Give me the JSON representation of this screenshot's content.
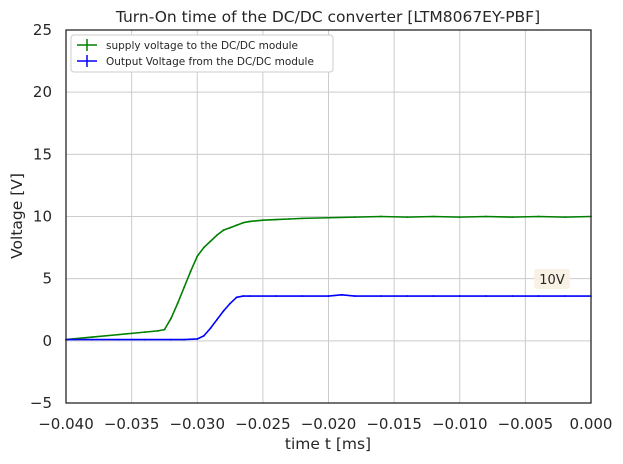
{
  "chart_data": {
    "type": "line",
    "title": "Turn-On time of the DC/DC converter [LTM8067EY-PBF]",
    "xlabel": "time t [ms]",
    "ylabel": "Voltage [V]",
    "xlim": [
      -0.04,
      0.0
    ],
    "ylim": [
      -5,
      25
    ],
    "x_ticks": [
      -0.04,
      -0.035,
      -0.03,
      -0.025,
      -0.02,
      -0.015,
      -0.01,
      -0.005,
      0.0
    ],
    "x_tick_labels": [
      "−0.040",
      "−0.035",
      "−0.030",
      "−0.025",
      "−0.020",
      "−0.015",
      "−0.010",
      "−0.005",
      "0.000"
    ],
    "y_ticks": [
      -5,
      0,
      5,
      10,
      15,
      20,
      25
    ],
    "y_tick_labels": [
      "−5",
      "0",
      "5",
      "10",
      "15",
      "20",
      "25"
    ],
    "grid": true,
    "legend_position": "top-left",
    "series": [
      {
        "name": "supply voltage to the DC/DC module",
        "color": "#008000",
        "x": [
          -0.04,
          -0.038,
          -0.036,
          -0.035,
          -0.034,
          -0.033,
          -0.0325,
          -0.032,
          -0.0315,
          -0.031,
          -0.0305,
          -0.03,
          -0.0295,
          -0.029,
          -0.0285,
          -0.028,
          -0.0275,
          -0.027,
          -0.0265,
          -0.026,
          -0.025,
          -0.024,
          -0.023,
          -0.022,
          -0.02,
          -0.018,
          -0.016,
          -0.014,
          -0.012,
          -0.01,
          -0.008,
          -0.006,
          -0.004,
          -0.002,
          0.0
        ],
        "y": [
          0.1,
          0.3,
          0.5,
          0.6,
          0.7,
          0.8,
          0.9,
          1.8,
          3.0,
          4.3,
          5.6,
          6.8,
          7.5,
          8.0,
          8.5,
          8.9,
          9.1,
          9.3,
          9.5,
          9.6,
          9.7,
          9.75,
          9.8,
          9.85,
          9.9,
          9.95,
          10.0,
          9.95,
          10.0,
          9.95,
          10.0,
          9.95,
          10.0,
          9.95,
          10.0
        ]
      },
      {
        "name": "Output Voltage from the DC/DC module",
        "color": "#0000ff",
        "x": [
          -0.04,
          -0.038,
          -0.036,
          -0.034,
          -0.032,
          -0.031,
          -0.03,
          -0.0295,
          -0.029,
          -0.0285,
          -0.028,
          -0.0275,
          -0.027,
          -0.0265,
          -0.026,
          -0.024,
          -0.022,
          -0.02,
          -0.019,
          -0.018,
          -0.016,
          -0.014,
          -0.012,
          -0.01,
          -0.008,
          -0.006,
          -0.004,
          -0.002,
          0.0
        ],
        "y": [
          0.1,
          0.1,
          0.1,
          0.1,
          0.1,
          0.1,
          0.15,
          0.4,
          1.0,
          1.7,
          2.4,
          3.0,
          3.5,
          3.6,
          3.6,
          3.6,
          3.6,
          3.6,
          3.7,
          3.6,
          3.6,
          3.6,
          3.6,
          3.6,
          3.6,
          3.6,
          3.6,
          3.6,
          3.6
        ]
      }
    ],
    "annotations": [
      {
        "text": "10V",
        "x": -0.003,
        "y": 5
      }
    ]
  }
}
